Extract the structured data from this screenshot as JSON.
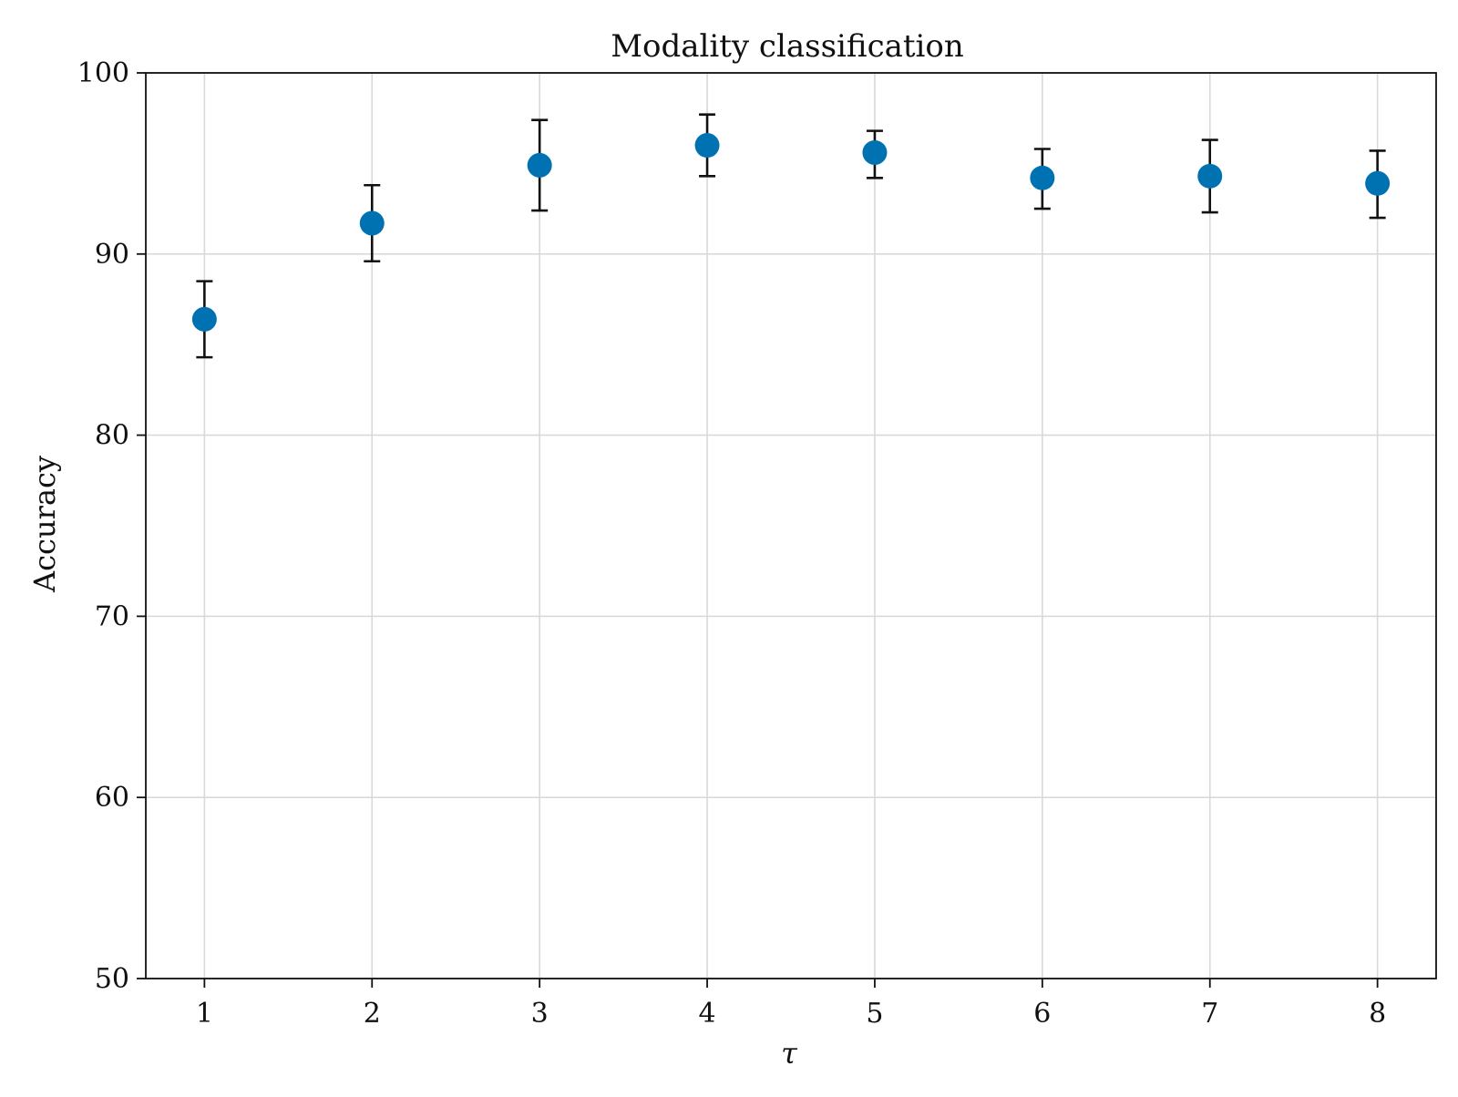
{
  "chart_data": {
    "type": "scatter",
    "title": "Modality classification",
    "xlabel": "τ",
    "ylabel": "Accuracy",
    "xlim": [
      0.65,
      8.35
    ],
    "ylim": [
      50,
      100
    ],
    "x_ticks": [
      1,
      2,
      3,
      4,
      5,
      6,
      7,
      8
    ],
    "y_ticks": [
      50,
      60,
      70,
      80,
      90,
      100
    ],
    "grid": true,
    "legend": "none",
    "marker_color": "#0072B2",
    "errorbar_color": "#111111",
    "series": [
      {
        "x": [
          1,
          2,
          3,
          4,
          5,
          6,
          7,
          8
        ],
        "y": [
          86.4,
          91.7,
          94.9,
          96.0,
          95.6,
          94.2,
          94.3,
          93.9
        ],
        "y_lower": [
          84.3,
          89.6,
          92.4,
          94.3,
          94.2,
          92.5,
          92.3,
          92.0
        ],
        "y_upper": [
          88.5,
          93.8,
          97.4,
          97.7,
          96.8,
          95.8,
          96.3,
          95.7
        ]
      }
    ]
  }
}
